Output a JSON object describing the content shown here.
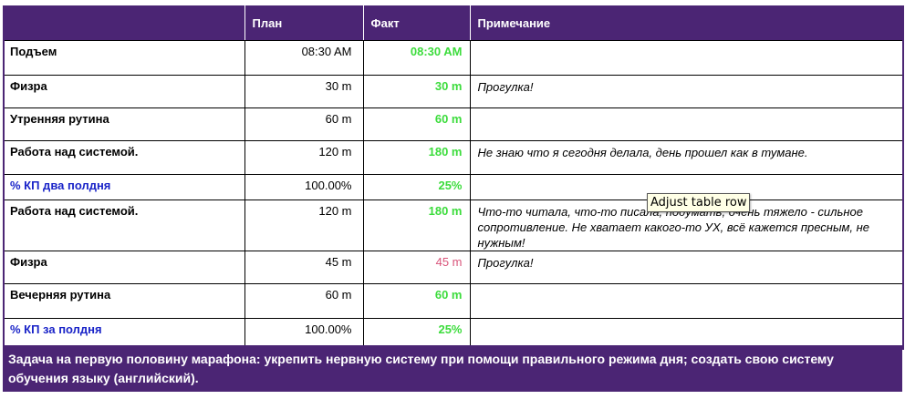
{
  "header": {
    "col_name": "",
    "col_plan": "План",
    "col_fact": "Факт",
    "col_note": "Примечание"
  },
  "rows": [
    {
      "name": "Подъем",
      "plan": "08:30 AM",
      "fact": "08:30 AM",
      "note": ""
    },
    {
      "name": "Физра",
      "plan": "30 m",
      "fact": "30 m",
      "note": "Прогулка!"
    },
    {
      "name": "Утренняя  рутина",
      "plan": "60 m",
      "fact": "60 m",
      "note": ""
    },
    {
      "name": "Работа  над системой.",
      "plan": "120 m",
      "fact": "180 m",
      "note": "Не знаю что я сегодня делала, день прошел как в тумане."
    },
    {
      "name": "% КП два полдня",
      "plan": "100.00%",
      "fact": "25%",
      "note": ""
    },
    {
      "name": "Работа  над системой.",
      "plan": "120 m",
      "fact": "180 m",
      "note": "Что-то читала, что-то писала, подумать, очень тяжело - сильное сопротивление. Не хватает какого-то УХ, всё кажется пресным, не нужным!"
    },
    {
      "name": "Физра",
      "plan": "45 m",
      "fact": "45 m",
      "note": "Прогулка!"
    },
    {
      "name": "Вечерняя рутина",
      "plan": "60 m",
      "fact": "60 m",
      "note": ""
    },
    {
      "name": "% КП за полдня",
      "plan": "100.00%",
      "fact": "25%",
      "note": ""
    }
  ],
  "footer": {
    "text": "Задача на первую половину марафона: укрепить  нервную систему при помощи правильного режима дня;  создать свою систему обучения языку (английский)."
  },
  "tooltip": {
    "text": "Adjust table row"
  },
  "colors": {
    "header_bg": "#4b2574",
    "fact_green": "#3cdc3c",
    "fact_pink": "#d9547a",
    "summary_blue": "#1a24c8"
  }
}
